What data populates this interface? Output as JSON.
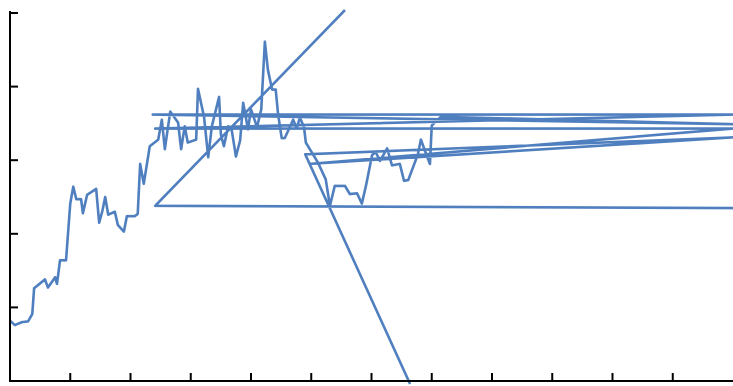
{
  "chart_data": {
    "type": "line",
    "x": [
      0,
      0.08,
      0.2,
      0.3,
      0.37,
      0.4,
      0.58,
      0.63,
      0.75,
      0.78,
      0.83,
      0.93,
      1.0,
      1.05,
      1.1,
      1.18,
      1.21,
      1.28,
      1.43,
      1.48,
      1.53,
      1.58,
      1.63,
      1.74,
      1.79,
      1.89,
      1.94,
      2.07,
      2.12,
      2.16,
      2.22,
      2.32,
      2.46,
      2.52,
      2.57,
      2.61,
      2.66,
      2.79,
      2.84,
      2.9,
      2.95,
      3.09,
      3.12,
      3.22,
      3.29,
      3.35,
      3.47,
      3.5,
      3.55,
      3.62,
      3.68,
      3.75,
      3.82,
      3.87,
      3.95,
      4.0,
      4.1,
      4.17,
      4.23,
      4.28,
      4.35,
      4.41,
      4.45,
      4.51,
      4.56,
      4.7,
      4.76,
      4.81,
      4.88,
      4.91,
      5.11,
      5.24,
      5.31,
      5.39,
      5.56,
      5.64,
      5.76,
      5.84,
      5.91,
      6.01,
      6.07,
      6.14,
      6.26,
      6.34,
      6.47,
      6.54,
      6.61,
      6.77,
      6.82,
      6.89,
      6.97,
      7.0,
      7.15,
      12.0,
      2.37,
      12.0,
      2.41,
      12.0,
      4.98,
      12.0,
      4.9,
      6.64,
      5.6,
      5.56,
      2.41,
      12.0
    ],
    "series": [
      {
        "color": "#4f7fbf",
        "values": [
          0.82,
          0.76,
          0.8,
          0.81,
          0.91,
          1.26,
          1.38,
          1.27,
          1.41,
          1.32,
          1.64,
          1.64,
          2.41,
          2.64,
          2.47,
          2.47,
          2.28,
          2.53,
          2.61,
          2.15,
          2.3,
          2.5,
          2.26,
          2.3,
          2.12,
          2.03,
          2.24,
          2.24,
          2.27,
          2.95,
          2.68,
          3.19,
          3.28,
          3.55,
          3.15,
          3.38,
          3.66,
          3.51,
          3.15,
          3.46,
          3.24,
          3.28,
          3.97,
          3.59,
          3.04,
          3.46,
          3.86,
          3.35,
          3.19,
          3.46,
          3.41,
          3.05,
          3.27,
          3.78,
          3.42,
          3.69,
          3.45,
          3.69,
          4.61,
          4.23,
          3.96,
          3.96,
          3.62,
          3.3,
          3.3,
          3.55,
          3.43,
          3.58,
          3.45,
          3.24,
          2.97,
          2.74,
          2.38,
          2.65,
          2.65,
          2.54,
          2.55,
          2.41,
          2.66,
          3.07,
          3.11,
          2.99,
          3.16,
          2.93,
          2.95,
          2.72,
          2.73,
          3.08,
          3.28,
          3.12,
          2.95,
          3.47,
          3.59,
          3.49,
          3.62,
          3.62,
          3.43,
          3.43,
          2.95,
          3.31,
          3.08,
          -0.04,
          null,
          5.04,
          2.38,
          2.35
        ]
      }
    ],
    "xlim": [
      0,
      12
    ],
    "xticks": [
      1,
      2,
      3,
      4,
      5,
      6,
      7,
      8,
      9,
      10,
      11
    ],
    "ylim": [
      0,
      5
    ],
    "yticks": [
      1,
      2,
      3,
      4,
      5
    ]
  }
}
